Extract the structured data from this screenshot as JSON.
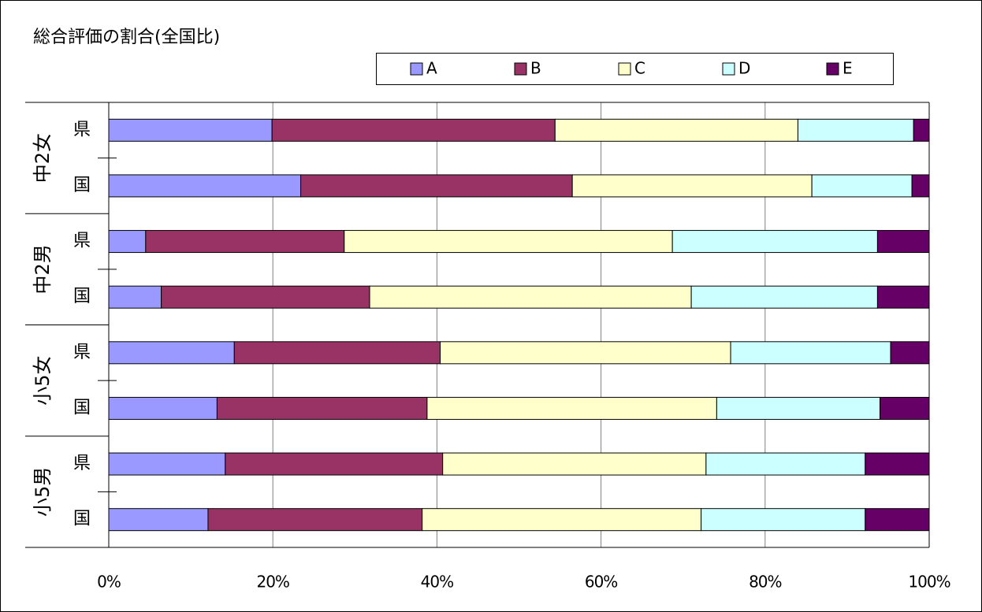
{
  "chart_data": {
    "type": "stacked_barh",
    "title": "総合評価の割合(全国比)",
    "groups": [
      "中2女",
      "中2男",
      "小5女",
      "小5男"
    ],
    "categories": [
      "県",
      "国",
      "県",
      "国",
      "県",
      "国",
      "県",
      "国"
    ],
    "series": [
      {
        "name": "A",
        "color": "#9999ff",
        "values": [
          19.9,
          23.4,
          4.5,
          6.4,
          15.3,
          13.2,
          14.2,
          12.1
        ]
      },
      {
        "name": "B",
        "color": "#993366",
        "values": [
          34.5,
          33.1,
          24.2,
          25.4,
          25.1,
          25.6,
          26.5,
          26.1
        ]
      },
      {
        "name": "C",
        "color": "#ffffcc",
        "values": [
          29.6,
          29.2,
          40.0,
          39.2,
          35.4,
          35.3,
          32.1,
          34.0
        ]
      },
      {
        "name": "D",
        "color": "#ccffff",
        "values": [
          14.1,
          12.2,
          25.0,
          22.7,
          19.5,
          19.9,
          19.4,
          20.0
        ]
      },
      {
        "name": "E",
        "color": "#660066",
        "values": [
          1.9,
          2.1,
          6.3,
          6.3,
          4.7,
          6.0,
          7.8,
          7.8
        ]
      }
    ],
    "xlim": [
      0,
      100
    ],
    "xticks": [
      {
        "value": 0,
        "label": "0%"
      },
      {
        "value": 20,
        "label": "20%"
      },
      {
        "value": 40,
        "label": "40%"
      },
      {
        "value": 60,
        "label": "60%"
      },
      {
        "value": 80,
        "label": "80%"
      },
      {
        "value": 100,
        "label": "100%"
      }
    ],
    "grid": true
  }
}
